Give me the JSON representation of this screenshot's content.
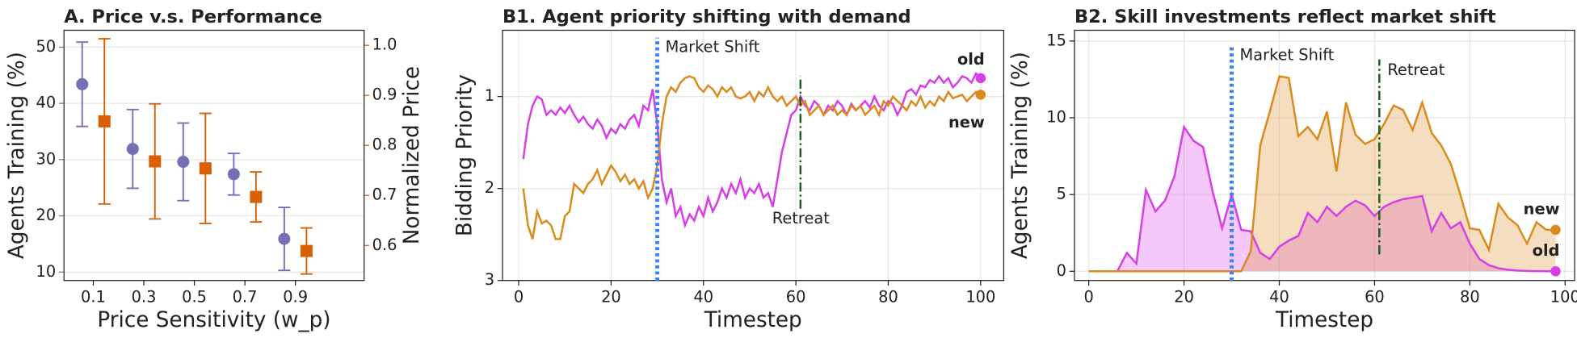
{
  "chart_data": [
    {
      "type": "errorbar",
      "title": "A. Price v.s. Performance",
      "xlabel": "Price Sensitivity (w_p)",
      "ylabel": "Agents Training (%)",
      "y2label": "Normalized Price",
      "categories": [
        "0.1",
        "0.3",
        "0.5",
        "0.7",
        "0.9"
      ],
      "ylim": [
        8.5,
        53
      ],
      "yticks": [
        10,
        20,
        30,
        40,
        50
      ],
      "y2lim": [
        0.53,
        1.03
      ],
      "y2ticks": [
        0.6,
        0.7,
        0.8,
        0.9,
        {
          "value": 1,
          "label": "1.0"
        }
      ],
      "grid": true,
      "series": [
        {
          "color": "#7570b3",
          "marker": "circle",
          "values": [
            43.4,
            31.9,
            29.6,
            27.4,
            15.9
          ],
          "errors": [
            7.5,
            7,
            6.9,
            3.7,
            5.6
          ]
        },
        {
          "color": "#d95f02",
          "marker": "square",
          "axis": "y2",
          "values": [
            0.848,
            0.768,
            0.754,
            0.697,
            0.589
          ],
          "errors": [
            0.165,
            0.115,
            0.11,
            0.05,
            0.046
          ]
        }
      ]
    },
    {
      "type": "line",
      "title": "B1. Agent priority shifting with demand",
      "xlabel": "Timestep",
      "ylabel": "Bidding Priority",
      "xlim": [
        -3.5,
        105
      ],
      "xticks": [
        0,
        20,
        40,
        60,
        80,
        100
      ],
      "ylim": [
        3,
        0.28
      ],
      "yticks": [
        1,
        2,
        3
      ],
      "grid": true,
      "x": [
        1,
        2,
        3,
        4,
        5,
        6,
        7,
        8,
        9,
        10,
        11,
        12,
        13,
        14,
        15,
        16,
        17,
        18,
        19,
        20,
        21,
        22,
        23,
        24,
        25,
        26,
        27,
        28,
        29,
        30,
        31,
        32,
        33,
        34,
        35,
        36,
        37,
        38,
        39,
        40,
        41,
        42,
        43,
        44,
        45,
        46,
        47,
        48,
        49,
        50,
        51,
        52,
        53,
        54,
        55,
        56,
        57,
        58,
        59,
        60,
        61,
        62,
        63,
        64,
        65,
        66,
        67,
        68,
        69,
        70,
        71,
        72,
        73,
        74,
        75,
        76,
        77,
        78,
        79,
        80,
        81,
        82,
        83,
        84,
        85,
        86,
        87,
        88,
        89,
        90,
        91,
        92,
        93,
        94,
        95,
        96,
        97,
        98,
        99,
        100
      ],
      "series": [
        {
          "name": "old",
          "color": "#d83ee8",
          "values": [
            1.68,
            1.3,
            1.1,
            1.0,
            1.03,
            1.2,
            1.15,
            1.2,
            1.12,
            1.18,
            1.1,
            1.2,
            1.28,
            1.22,
            1.3,
            1.35,
            1.25,
            1.32,
            1.45,
            1.35,
            1.4,
            1.3,
            1.35,
            1.25,
            1.2,
            1.32,
            1.1,
            1.15,
            0.92,
            1.3,
            1.9,
            2.15,
            2.0,
            2.3,
            2.2,
            2.4,
            2.28,
            2.35,
            2.2,
            2.3,
            2.1,
            2.25,
            2.15,
            2.0,
            2.1,
            1.95,
            2.05,
            1.9,
            2.1,
            2.0,
            2.05,
            1.95,
            2.1,
            2.05,
            2.2,
            1.9,
            1.6,
            1.4,
            1.2,
            1.15,
            1.0,
            1.1,
            1.15,
            1.05,
            1.1,
            1.2,
            1.1,
            1.15,
            1.05,
            1.1,
            1.2,
            1.08,
            1.15,
            1.1,
            1.05,
            1.12,
            1.0,
            1.1,
            1.15,
            1.05,
            1.08,
            1.2,
            1.1,
            0.95,
            0.92,
            0.98,
            0.88,
            0.9,
            0.82,
            0.85,
            0.78,
            0.85,
            0.8,
            0.9,
            0.85,
            0.78,
            0.8,
            0.85,
            0.75,
            0.8
          ]
        },
        {
          "name": "new",
          "color": "#db8a1e",
          "values": [
            2.0,
            2.4,
            2.55,
            2.25,
            2.38,
            2.35,
            2.4,
            2.55,
            2.55,
            2.3,
            2.25,
            1.95,
            2.0,
            2.05,
            1.95,
            1.9,
            1.8,
            1.95,
            1.85,
            1.75,
            1.82,
            1.92,
            1.85,
            1.95,
            1.9,
            2.0,
            1.92,
            2.1,
            2.0,
            1.75,
            1.3,
            1.0,
            0.9,
            0.95,
            0.85,
            0.8,
            0.78,
            0.8,
            0.9,
            0.95,
            0.88,
            0.92,
            1.0,
            0.9,
            0.95,
            0.9,
            1.0,
            1.02,
            1.0,
            0.95,
            1.05,
            0.95,
            1.0,
            0.9,
            1.0,
            1.05,
            1.0,
            1.1,
            1.05,
            1.0,
            1.1,
            1.05,
            1.2,
            1.15,
            1.1,
            1.2,
            1.15,
            1.1,
            1.2,
            1.15,
            1.2,
            1.1,
            1.15,
            1.1,
            1.2,
            1.15,
            1.1,
            1.2,
            1.05,
            1.1,
            1.0,
            1.05,
            1.1,
            1.15,
            1.05,
            1.1,
            1.0,
            1.12,
            1.05,
            1.1,
            1.0,
            1.05,
            0.95,
            1.02,
            1.0,
            0.98,
            1.05,
            1.0,
            0.95,
            0.98
          ]
        }
      ],
      "annotations": [
        {
          "text": "Market Shift",
          "x": 30,
          "y_span": [
            3,
            0.36
          ],
          "color": "#3b82f6",
          "style": "dotted"
        },
        {
          "text": "Retreat",
          "x": 61,
          "y_span": [
            2.22,
            0.78
          ],
          "color": "#1b5e20",
          "style": "dashdot"
        }
      ]
    },
    {
      "type": "area",
      "title": "B2. Skill investments reflect market shift",
      "xlabel": "Timestep",
      "ylabel": "Agents Training (%)",
      "xlim": [
        -3,
        102
      ],
      "xticks": [
        0,
        20,
        40,
        60,
        80,
        100
      ],
      "ylim": [
        -0.6,
        15.7
      ],
      "yticks": [
        0,
        5,
        10,
        15
      ],
      "grid": true,
      "x": [
        0,
        2,
        4,
        6,
        8,
        10,
        12,
        14,
        16,
        18,
        20,
        22,
        24,
        26,
        28,
        30,
        32,
        34,
        36,
        38,
        40,
        42,
        44,
        46,
        48,
        50,
        52,
        54,
        56,
        58,
        60,
        62,
        64,
        66,
        68,
        70,
        72,
        74,
        76,
        78,
        80,
        82,
        84,
        86,
        88,
        90,
        92,
        94,
        96,
        98
      ],
      "series": [
        {
          "name": "old",
          "color": "#d83ee8",
          "values": [
            0,
            0,
            0,
            0,
            1.2,
            0.5,
            5.3,
            3.9,
            4.6,
            6.2,
            9.4,
            8.5,
            8.1,
            5.2,
            2.8,
            5.0,
            2.7,
            2.6,
            1.2,
            0.8,
            1.6,
            2.0,
            2.3,
            3.8,
            3.2,
            4.2,
            3.6,
            4.2,
            4.6,
            4.3,
            3.6,
            4.2,
            4.5,
            4.7,
            4.8,
            4.9,
            2.6,
            3.8,
            2.8,
            3.2,
            1.8,
            0.8,
            0.4,
            0.2,
            0.1,
            0.05,
            0.02,
            0.01,
            0,
            0
          ]
        },
        {
          "name": "new",
          "color": "#db8a1e",
          "values": [
            0,
            0,
            0,
            0,
            0,
            0,
            0,
            0,
            0,
            0,
            0,
            0,
            0,
            0,
            0,
            0,
            0,
            1.3,
            8.2,
            10.4,
            12.7,
            12.6,
            8.8,
            9.4,
            8.6,
            10.4,
            6.5,
            11.0,
            8.9,
            8.3,
            8.6,
            9.6,
            10.8,
            10.5,
            9.2,
            11.0,
            9.0,
            8.2,
            7.0,
            5.0,
            2.8,
            2.7,
            1.4,
            4.4,
            3.5,
            3.0,
            1.8,
            3.2,
            2.7,
            2.7
          ]
        }
      ],
      "annotations": [
        {
          "text": "Market Shift",
          "x": 30,
          "y_span": [
            -0.6,
            14.6
          ],
          "color": "#3b82f6",
          "style": "dotted"
        },
        {
          "text": "Retreat",
          "x": 61,
          "y_span": [
            1.1,
            13.8
          ],
          "color": "#1b5e20",
          "style": "dashdot"
        }
      ]
    }
  ]
}
